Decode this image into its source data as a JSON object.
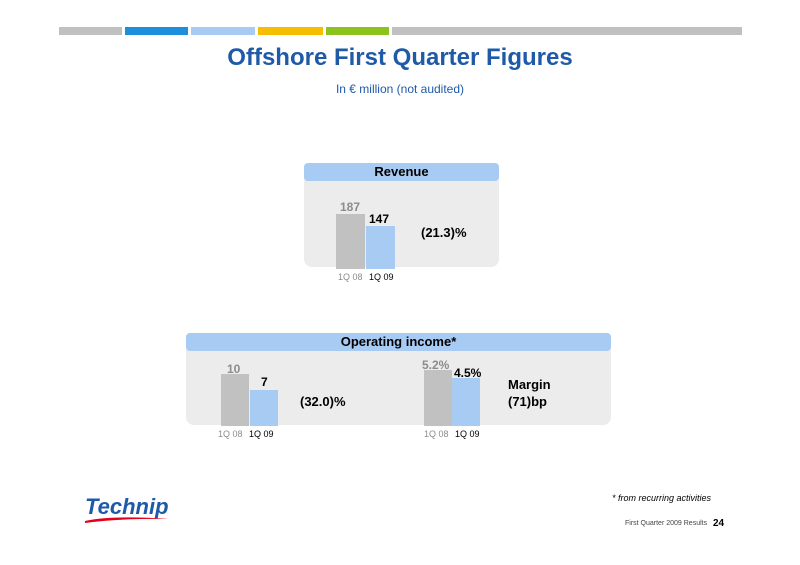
{
  "header": {
    "title": "Offshore First Quarter Figures",
    "subtitle": "In € million (not audited)",
    "stripe_colors": [
      "#c0c0c0",
      "#1e8fdc",
      "#a7cbf3",
      "#f5be00",
      "#8ec21c",
      "#c0c0c0"
    ]
  },
  "chart_data": [
    {
      "type": "bar",
      "title": "Revenue",
      "categories": [
        "1Q 08",
        "1Q 09"
      ],
      "values": [
        187,
        147
      ],
      "value_labels": [
        "187",
        "147"
      ],
      "change": "(21.3)%",
      "colors": [
        "#c1c1c1",
        "#a7cbf3"
      ]
    },
    {
      "type": "bar",
      "title": "Operating income*",
      "categories": [
        "1Q 08",
        "1Q 09"
      ],
      "values": [
        10,
        7
      ],
      "value_labels": [
        "10",
        "7"
      ],
      "change": "(32.0)%",
      "colors": [
        "#c1c1c1",
        "#a7cbf3"
      ]
    },
    {
      "type": "bar",
      "title": "Operating income*",
      "categories": [
        "1Q 08",
        "1Q 09"
      ],
      "values": [
        5.2,
        4.5
      ],
      "value_labels": [
        "5.2%",
        "4.5%"
      ],
      "change_label": "Margin",
      "change": "(71)bp",
      "colors": [
        "#c1c1c1",
        "#a7cbf3"
      ]
    }
  ],
  "footnote": "* from recurring activities",
  "footer": {
    "text": "First Quarter 2009 Results",
    "page": "24",
    "logo_text": "Technip",
    "logo_color": "#1f5aa8",
    "logo_swoosh_color": "#e2001a"
  }
}
